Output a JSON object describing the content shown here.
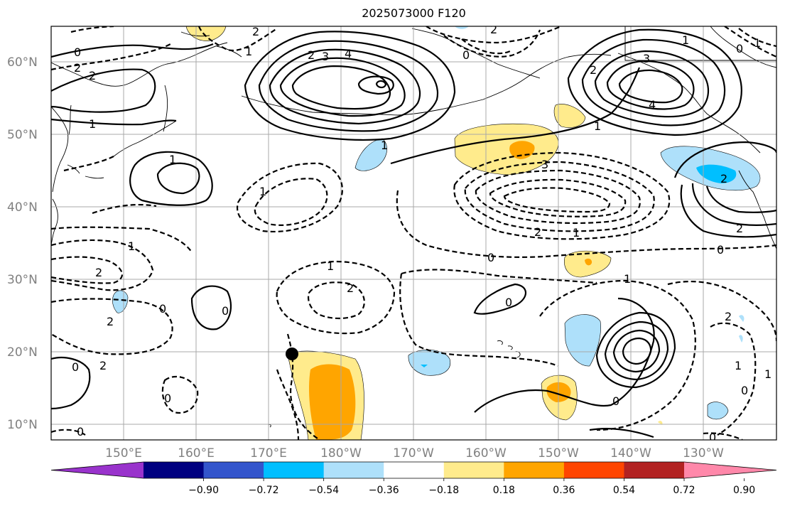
{
  "title": "2025073000 F120",
  "lat_labels": [
    "60°N",
    "50°N",
    "40°N",
    "30°N",
    "20°N",
    "10°N"
  ],
  "lon_labels": [
    "150°E",
    "160°E",
    "170°E",
    "180°W",
    "170°W",
    "160°W",
    "150°W",
    "140°W",
    "130°W"
  ],
  "contour_labels": {
    "l_0_a": "0",
    "l_m2_a": "2",
    "l_1_a": "1",
    "l_m1_a": "1",
    "l_m2_b": "2",
    "l_1_b": "1",
    "l_m2_c": "2",
    "l_3_a": "3",
    "l_4_a": "4",
    "l_2_a": "2",
    "l_m2_d": "2",
    "l_m1_b": "1",
    "l_0_b": "0",
    "l_2_b": "2",
    "l_3_b": "3",
    "l_4_b": "4",
    "l_1_c": "1",
    "l_0_c": "0",
    "l_1_d": "1",
    "l_1_e": "1",
    "l_m1_c": "1",
    "l_m1_d": "1",
    "l_m2_e": "2",
    "l_m2_f": "2",
    "l_0_d": "0",
    "l_0_e": "0",
    "l_m1_f": "1",
    "l_m2_g": "2",
    "l_m2_h": "2",
    "l_1_f": "1",
    "l_0_f": "0",
    "l_m3": "3",
    "l_2_c": "2",
    "l_2_d": "2",
    "l_0_g": "0",
    "l_1_g": "1",
    "l_m2_i": "2",
    "l_0_h": "0",
    "l_0_i": "0",
    "l_0_j": "0",
    "l_m1_g": "1",
    "l_2_e": "2",
    "l_0_k": "0",
    "l_0_l": "0",
    "l_0_m": "0",
    "l_0_n": "0",
    "l_m1_h": "1"
  },
  "colorbar": {
    "ticks": [
      "−0.90",
      "−0.72",
      "−0.54",
      "−0.36",
      "−0.18",
      "0.18",
      "0.36",
      "0.54",
      "0.72",
      "0.90"
    ],
    "colors": [
      "#9933cc",
      "#000080",
      "#3355cc",
      "#00bfff",
      "#aee0fa",
      "#ffffff",
      "#ffeb8c",
      "#ffa500",
      "#ff4500",
      "#b22222",
      "#ff88aa"
    ]
  },
  "colors": {
    "pos_light": "#ffeb8c",
    "pos_mid": "#ffa500",
    "neg_light": "#aee0fa",
    "neg_mid": "#00bfff"
  }
}
